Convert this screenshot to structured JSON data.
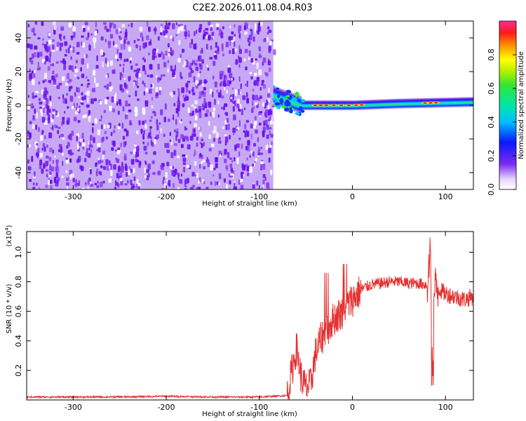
{
  "title": "C2E2.2026.011.08.04.R03",
  "colors": {
    "noise": "#6a11ee",
    "noise_light": "#c7a8f5",
    "trace": "#e33030",
    "frame": "#000000"
  },
  "chart_data": [
    {
      "type": "heatmap",
      "name": "spectrogram",
      "xlabel": "Height of straight line (km)",
      "ylabel": "Frequency (Hz)",
      "xlim": [
        -350,
        130
      ],
      "ylim": [
        -50,
        50
      ],
      "x_ticks": [
        -300,
        -200,
        -100,
        0,
        100
      ],
      "x_tick_labels": [
        "-300",
        "-200",
        "-100",
        "0",
        "100"
      ],
      "y_ticks": [
        40,
        20,
        0,
        -20,
        -40
      ],
      "y_tick_labels": [
        "40",
        "20",
        "0",
        "-20",
        "-40"
      ],
      "noise_region_x": [
        -350,
        -85
      ],
      "signal_band": {
        "x_start": -85,
        "x_end": 130,
        "center_hz": [
          {
            "x": -85,
            "hz": 6
          },
          {
            "x": -70,
            "hz": 3
          },
          {
            "x": -55,
            "hz": 0
          },
          {
            "x": -30,
            "hz": 0
          },
          {
            "x": 0,
            "hz": 0
          },
          {
            "x": 50,
            "hz": 1
          },
          {
            "x": 130,
            "hz": 2
          }
        ],
        "halfwidth_hz": 3
      },
      "colorbar": {
        "label": "Normalized spectral amplitude",
        "range": [
          0,
          1
        ],
        "ticks": [
          0.0,
          0.2,
          0.4,
          0.6,
          0.8
        ],
        "tick_labels": [
          "0.0",
          "0.2",
          "0.4",
          "0.6",
          "0.8"
        ]
      }
    },
    {
      "type": "line",
      "name": "snr",
      "xlabel": "Height of straight line (km)",
      "ylabel": "SNR (10 * v/v)",
      "multiplier_label": "(x10",
      "multiplier_exp": "4",
      "multiplier_close": ")",
      "xlim": [
        -350,
        130
      ],
      "ylim": [
        0,
        1.14
      ],
      "x_ticks": [
        -300,
        -200,
        -100,
        0,
        100
      ],
      "x_tick_labels": [
        "-300",
        "-200",
        "-100",
        "0",
        "100"
      ],
      "y_ticks": [
        0.2,
        0.4,
        0.6,
        0.8,
        1.0
      ],
      "y_tick_labels": [
        "0.2",
        "0.4",
        "0.6",
        "0.8",
        "1.0"
      ],
      "series": [
        {
          "name": "SNR",
          "x": [
            -350,
            -300,
            -250,
            -200,
            -150,
            -100,
            -70,
            -65,
            -60,
            -55,
            -50,
            -45,
            -40,
            -35,
            -30,
            -20,
            -10,
            0,
            10,
            20,
            30,
            40,
            50,
            60,
            70,
            80,
            84,
            86,
            88,
            90,
            95,
            100,
            110,
            120,
            130
          ],
          "y": [
            0.02,
            0.02,
            0.02,
            0.025,
            0.02,
            0.02,
            0.03,
            0.2,
            0.35,
            0.15,
            0.08,
            0.1,
            0.3,
            0.4,
            0.45,
            0.55,
            0.6,
            0.68,
            0.75,
            0.78,
            0.79,
            0.8,
            0.8,
            0.79,
            0.79,
            0.78,
            0.95,
            0.2,
            0.7,
            0.77,
            0.74,
            0.72,
            0.7,
            0.68,
            0.7
          ]
        }
      ]
    }
  ]
}
